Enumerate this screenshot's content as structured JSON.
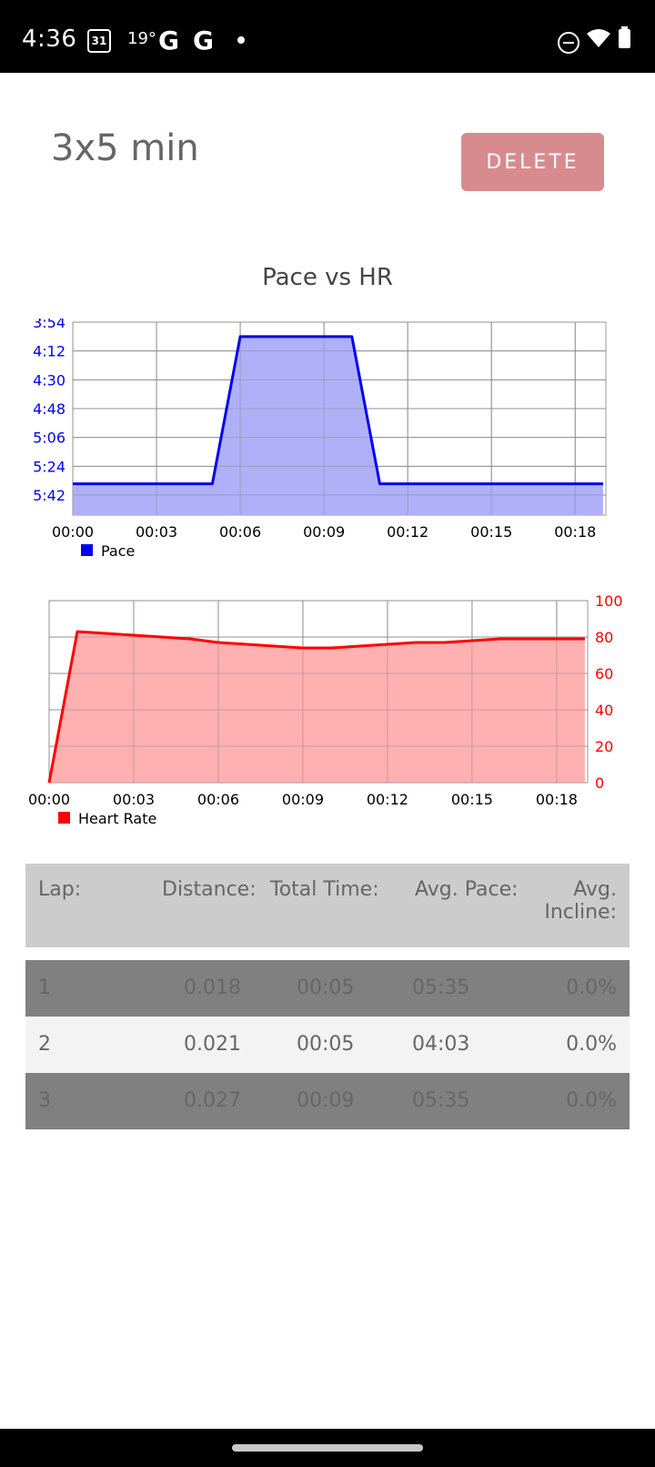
{
  "status": {
    "time": "4:36",
    "calendar_day": "31",
    "temperature": "19°",
    "g1": "G",
    "g2": "G"
  },
  "header": {
    "title": "3x5 min",
    "delete_label": "DELETE"
  },
  "chart_heading": "Pace vs HR",
  "chart_data": [
    {
      "type": "area",
      "name": "pace-chart",
      "x": [
        "00:00",
        "00:01",
        "00:02",
        "00:03",
        "00:04",
        "00:05",
        "00:06",
        "00:07",
        "00:08",
        "00:09",
        "00:10",
        "00:11",
        "00:12",
        "00:13",
        "00:14",
        "00:15",
        "00:16",
        "00:17",
        "00:18",
        "00:19"
      ],
      "series": [
        {
          "name": "Pace",
          "color": "#0000ee",
          "fill": "#b0b0f8",
          "values": [
            "5:35",
            "5:35",
            "5:35",
            "5:35",
            "5:35",
            "5:35",
            "4:03",
            "4:03",
            "4:03",
            "4:03",
            "4:03",
            "5:35",
            "5:35",
            "5:35",
            "5:35",
            "5:35",
            "5:35",
            "5:35",
            "5:35",
            "5:35"
          ]
        }
      ],
      "x_tick_labels": [
        "00:00",
        "00:03",
        "00:06",
        "00:09",
        "00:12",
        "00:15",
        "00:18"
      ],
      "y_tick_labels": [
        "3:54",
        "4:12",
        "4:30",
        "4:48",
        "5:06",
        "5:24",
        "5:42"
      ],
      "y_axis": "inverted pace (min/km), left",
      "legend": "bottom-left",
      "grid": true
    },
    {
      "type": "area",
      "name": "hr-chart",
      "x": [
        "00:00",
        "00:01",
        "00:02",
        "00:03",
        "00:04",
        "00:05",
        "00:06",
        "00:07",
        "00:08",
        "00:09",
        "00:10",
        "00:11",
        "00:12",
        "00:13",
        "00:14",
        "00:15",
        "00:16",
        "00:17",
        "00:18",
        "00:19"
      ],
      "series": [
        {
          "name": "Heart Rate",
          "color": "#ff0000",
          "fill": "#ffb0b0",
          "values": [
            0,
            83,
            82,
            81,
            80,
            79,
            77,
            76,
            75,
            74,
            74,
            75,
            76,
            77,
            77,
            78,
            79,
            79,
            79,
            79
          ]
        }
      ],
      "x_tick_labels": [
        "00:00",
        "00:03",
        "00:06",
        "00:09",
        "00:12",
        "00:15",
        "00:18"
      ],
      "y_tick_labels": [
        "0",
        "20",
        "40",
        "60",
        "80",
        "100"
      ],
      "ylim": [
        0,
        100
      ],
      "y_axis": "right",
      "legend": "bottom-left",
      "grid": true
    }
  ],
  "laps": {
    "headers": {
      "lap": "Lap:",
      "distance": "Distance:",
      "total_time": "Total Time:",
      "avg_pace": "Avg. Pace:",
      "avg_incline_1": "Avg.",
      "avg_incline_2": "Incline:"
    },
    "rows": [
      {
        "lap": "1",
        "distance": "0.018",
        "time": "00:05",
        "pace": "05:35",
        "incline": "0.0%"
      },
      {
        "lap": "2",
        "distance": "0.021",
        "time": "00:05",
        "pace": "04:03",
        "incline": "0.0%"
      },
      {
        "lap": "3",
        "distance": "0.027",
        "time": "00:09",
        "pace": "05:35",
        "incline": "0.0%"
      }
    ]
  }
}
